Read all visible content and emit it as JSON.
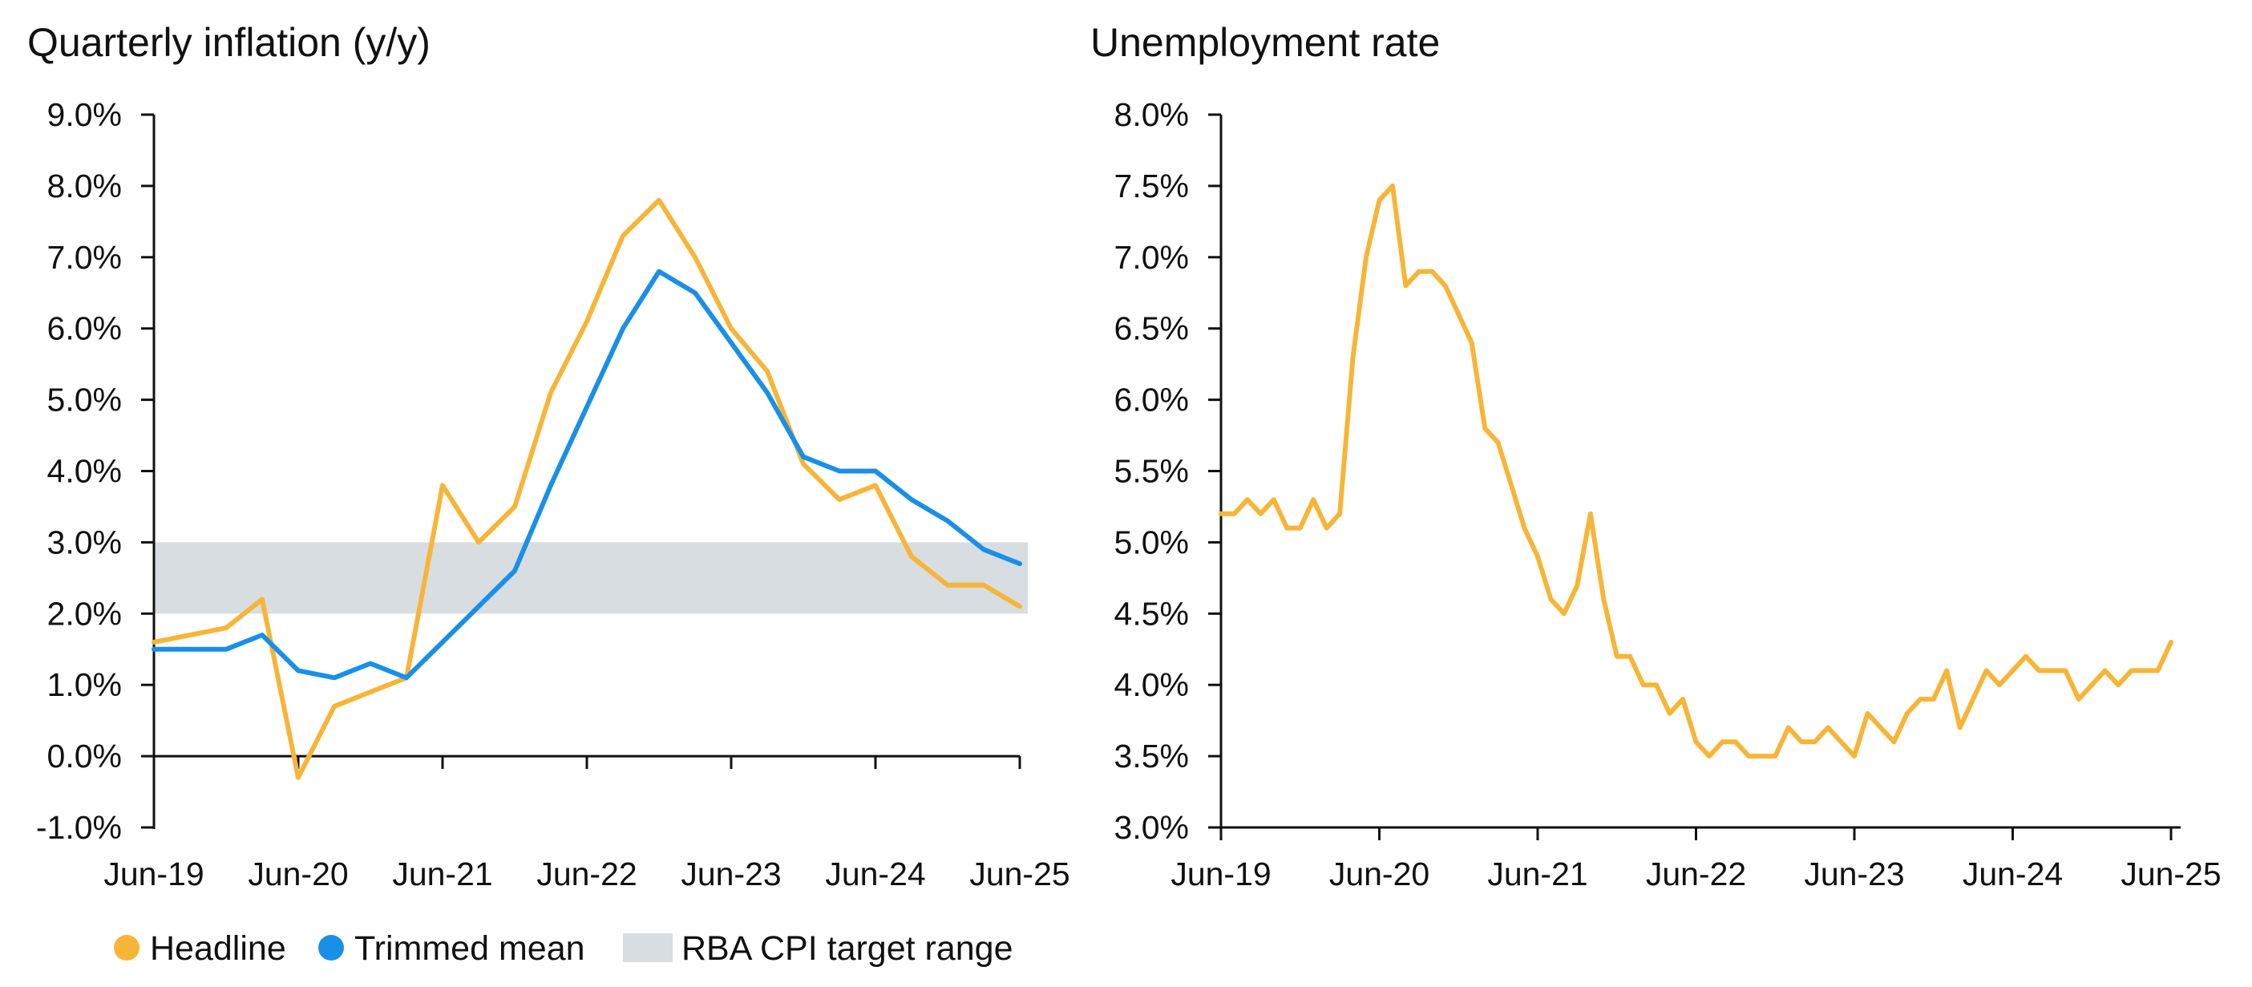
{
  "colors": {
    "headline": "#f7b538",
    "trimmed_mean": "#1a8fe8",
    "target_band": "#d7dde0",
    "axis": "#111111"
  },
  "chart_data": [
    {
      "type": "line",
      "title": "Quarterly inflation (y/y)",
      "xlabel": "",
      "ylabel": "",
      "x_tick_labels": [
        "Jun-19",
        "Jun-20",
        "Jun-21",
        "Jun-22",
        "Jun-23",
        "Jun-24",
        "Jun-25"
      ],
      "y_tick_labels": [
        "-1.0%",
        "0.0%",
        "1.0%",
        "2.0%",
        "3.0%",
        "4.0%",
        "5.0%",
        "6.0%",
        "7.0%",
        "8.0%",
        "9.0%"
      ],
      "ylim": [
        -1.0,
        9.0
      ],
      "x": [
        "Jun-19",
        "Sep-19",
        "Dec-19",
        "Mar-20",
        "Jun-20",
        "Sep-20",
        "Dec-20",
        "Mar-21",
        "Jun-21",
        "Sep-21",
        "Dec-21",
        "Mar-22",
        "Jun-22",
        "Sep-22",
        "Dec-22",
        "Mar-23",
        "Jun-23",
        "Sep-23",
        "Dec-23",
        "Mar-24",
        "Jun-24",
        "Sep-24",
        "Dec-24",
        "Mar-25",
        "Jun-25"
      ],
      "series": [
        {
          "name": "Headline",
          "values": [
            1.6,
            1.7,
            1.8,
            2.2,
            -0.3,
            0.7,
            0.9,
            1.1,
            3.8,
            3.0,
            3.5,
            5.1,
            6.1,
            7.3,
            7.8,
            7.0,
            6.0,
            5.4,
            4.1,
            3.6,
            3.8,
            2.8,
            2.4,
            2.4,
            2.1
          ]
        },
        {
          "name": "Trimmed mean",
          "values": [
            1.5,
            1.5,
            1.5,
            1.7,
            1.2,
            1.1,
            1.3,
            1.1,
            1.6,
            2.1,
            2.6,
            3.8,
            4.9,
            6.0,
            6.8,
            6.5,
            5.8,
            5.1,
            4.2,
            4.0,
            4.0,
            3.6,
            3.3,
            2.9,
            2.7
          ]
        }
      ],
      "bands": [
        {
          "name": "RBA CPI target range",
          "from": 2.0,
          "to": 3.0
        }
      ],
      "legend": {
        "position": "bottom-left",
        "entries": [
          "Headline",
          "Trimmed mean",
          "RBA CPI target range"
        ]
      },
      "grid": false
    },
    {
      "type": "line",
      "title": "Unemployment rate",
      "xlabel": "",
      "ylabel": "",
      "x_tick_labels": [
        "Jun-19",
        "Jun-20",
        "Jun-21",
        "Jun-22",
        "Jun-23",
        "Jun-24",
        "Jun-25"
      ],
      "y_tick_labels": [
        "3.0%",
        "3.5%",
        "4.0%",
        "4.5%",
        "5.0%",
        "5.5%",
        "6.0%",
        "6.5%",
        "7.0%",
        "7.5%",
        "8.0%"
      ],
      "ylim": [
        3.0,
        8.0
      ],
      "x_range": [
        "Jun-19",
        "Jun-25"
      ],
      "series": [
        {
          "values": [
            5.2,
            5.2,
            5.3,
            5.2,
            5.3,
            5.1,
            5.1,
            5.3,
            5.1,
            5.2,
            6.3,
            7.0,
            7.4,
            7.5,
            6.8,
            6.9,
            6.9,
            6.8,
            6.6,
            6.4,
            5.8,
            5.7,
            5.4,
            5.1,
            4.9,
            4.6,
            4.5,
            4.7,
            5.2,
            4.6,
            4.2,
            4.2,
            4.0,
            4.0,
            3.8,
            3.9,
            3.6,
            3.5,
            3.6,
            3.6,
            3.5,
            3.5,
            3.5,
            3.7,
            3.6,
            3.6,
            3.7,
            3.6,
            3.5,
            3.8,
            3.7,
            3.6,
            3.8,
            3.9,
            3.9,
            4.1,
            3.7,
            3.9,
            4.1,
            4.0,
            4.1,
            4.2,
            4.1,
            4.1,
            4.1,
            3.9,
            4.0,
            4.1,
            4.0,
            4.1,
            4.1,
            4.1,
            4.3
          ]
        }
      ],
      "grid": false
    }
  ]
}
